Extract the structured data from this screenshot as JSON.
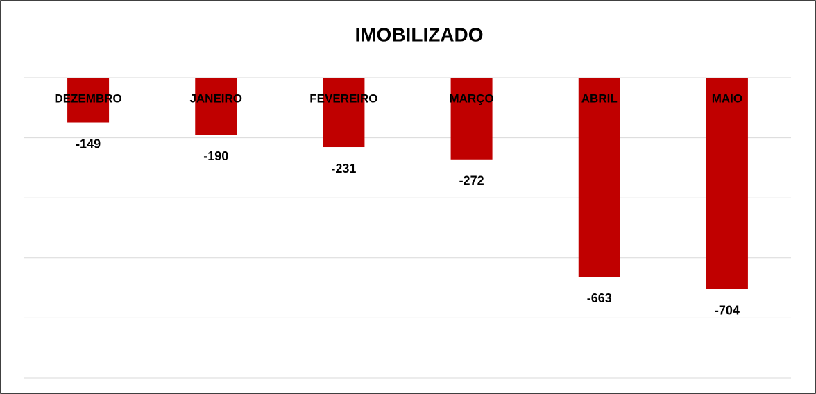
{
  "chart_data": {
    "type": "bar",
    "title": "IMOBILIZADO",
    "categories": [
      "DEZEMBRO",
      "JANEIRO",
      "FEVEREIRO",
      "MARÇO",
      "ABRIL",
      "MAIO"
    ],
    "values": [
      -149,
      -190,
      -231,
      -272,
      -663,
      -704
    ],
    "color": "#c00000",
    "ylim": [
      -1000,
      0
    ],
    "yticks": [
      0,
      -200,
      -400,
      -600,
      -800,
      -1000
    ],
    "grid": true
  }
}
